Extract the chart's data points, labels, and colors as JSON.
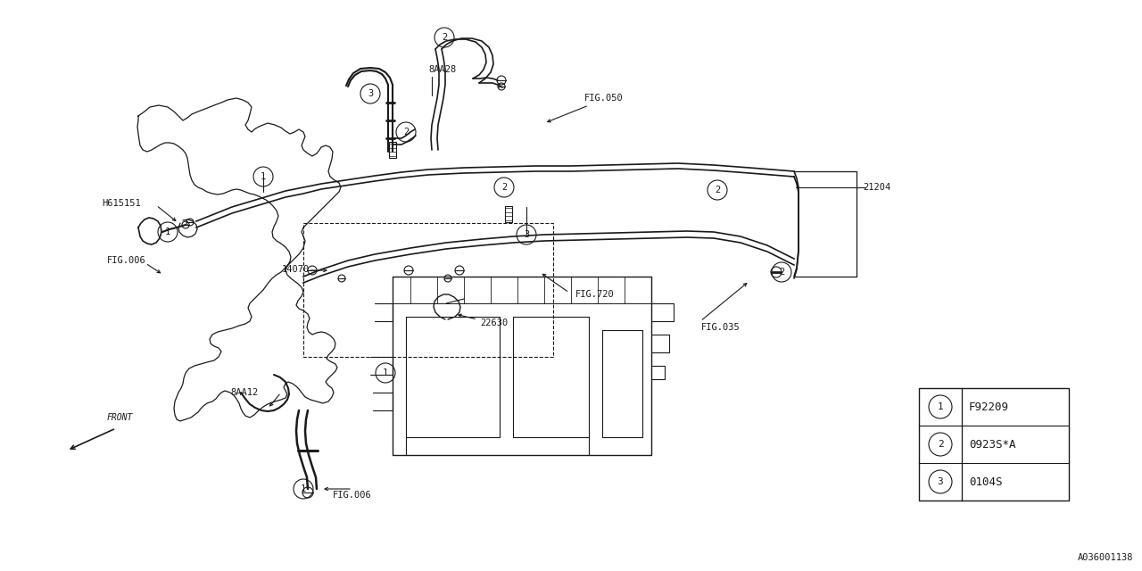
{
  "bg_color": "#ffffff",
  "line_color": "#1a1a1a",
  "part_number": "A036001138",
  "legend": [
    {
      "num": "1",
      "code": "F92209"
    },
    {
      "num": "2",
      "code": "0923S*A"
    },
    {
      "num": "3",
      "code": "0104S"
    }
  ],
  "fig_w": 12.8,
  "fig_h": 6.4,
  "dpi": 100
}
